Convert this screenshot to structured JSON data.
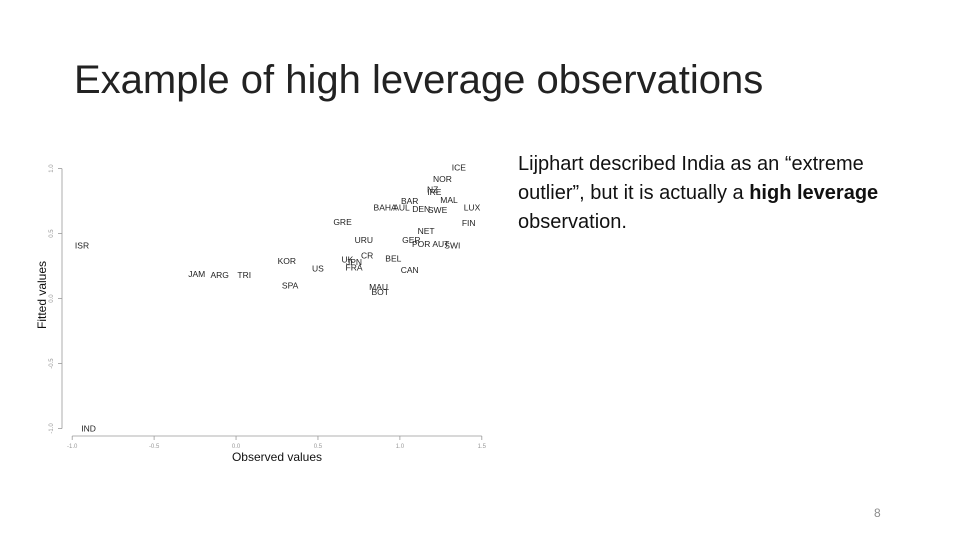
{
  "slide": {
    "title": "Example of high leverage observations",
    "page_number": "8"
  },
  "text_box": {
    "part1": "Lijphart described India as an “extreme outlier”, but it is actually a ",
    "bold": "high leverage",
    "part2": " observation."
  },
  "chart_data": {
    "type": "scatter",
    "title": "",
    "xlabel": "Observed values",
    "ylabel": "Fitted values",
    "xlim": [
      -1.05,
      1.55
    ],
    "ylim": [
      -1.05,
      1.12
    ],
    "x_ticks": [
      -1.0,
      -0.5,
      0.0,
      0.5,
      1.0,
      1.5
    ],
    "x_tick_labels": [
      "-1.0",
      "-0.5",
      "0.0",
      "0.5",
      "1.0",
      "1.5"
    ],
    "y_ticks": [
      -1.0,
      -0.5,
      0.0,
      0.5,
      1.0
    ],
    "y_tick_labels": [
      "-1.0",
      "-0.5",
      "0.0",
      "0.5",
      "1.0"
    ],
    "grid": false,
    "marker": "country code text",
    "points": [
      {
        "label": "ICE",
        "x": 1.36,
        "y": 1.01
      },
      {
        "label": "NOR",
        "x": 1.26,
        "y": 0.92
      },
      {
        "label": "NZ",
        "x": 1.2,
        "y": 0.84
      },
      {
        "label": "IRE",
        "x": 1.21,
        "y": 0.82
      },
      {
        "label": "MAL",
        "x": 1.3,
        "y": 0.76
      },
      {
        "label": "BAR",
        "x": 1.06,
        "y": 0.75
      },
      {
        "label": "BAHA",
        "x": 0.91,
        "y": 0.7
      },
      {
        "label": "AUL",
        "x": 1.01,
        "y": 0.7
      },
      {
        "label": "DEN",
        "x": 1.13,
        "y": 0.69
      },
      {
        "label": "SWE",
        "x": 1.23,
        "y": 0.68
      },
      {
        "label": "LUX",
        "x": 1.44,
        "y": 0.7
      },
      {
        "label": "FIN",
        "x": 1.42,
        "y": 0.58
      },
      {
        "label": "GRE",
        "x": 0.65,
        "y": 0.59
      },
      {
        "label": "NET",
        "x": 1.16,
        "y": 0.52
      },
      {
        "label": "URU",
        "x": 0.78,
        "y": 0.45
      },
      {
        "label": "GER",
        "x": 1.07,
        "y": 0.45
      },
      {
        "label": "POR",
        "x": 1.13,
        "y": 0.42
      },
      {
        "label": "AUT",
        "x": 1.25,
        "y": 0.42
      },
      {
        "label": "SWI",
        "x": 1.32,
        "y": 0.41
      },
      {
        "label": "ISR",
        "x": -0.94,
        "y": 0.41
      },
      {
        "label": "CR",
        "x": 0.8,
        "y": 0.33
      },
      {
        "label": "BEL",
        "x": 0.96,
        "y": 0.31
      },
      {
        "label": "UK",
        "x": 0.68,
        "y": 0.3
      },
      {
        "label": "JPN",
        "x": 0.72,
        "y": 0.28
      },
      {
        "label": "KOR",
        "x": 0.31,
        "y": 0.29
      },
      {
        "label": "FRA",
        "x": 0.72,
        "y": 0.24
      },
      {
        "label": "US",
        "x": 0.5,
        "y": 0.23
      },
      {
        "label": "CAN",
        "x": 1.06,
        "y": 0.22
      },
      {
        "label": "JAM",
        "x": -0.24,
        "y": 0.19
      },
      {
        "label": "ARG",
        "x": -0.1,
        "y": 0.18
      },
      {
        "label": "TRI",
        "x": 0.05,
        "y": 0.18
      },
      {
        "label": "SPA",
        "x": 0.33,
        "y": 0.1
      },
      {
        "label": "MAU",
        "x": 0.87,
        "y": 0.09
      },
      {
        "label": "BOT",
        "x": 0.88,
        "y": 0.05
      },
      {
        "label": "IND",
        "x": -0.9,
        "y": -1.0
      }
    ]
  }
}
